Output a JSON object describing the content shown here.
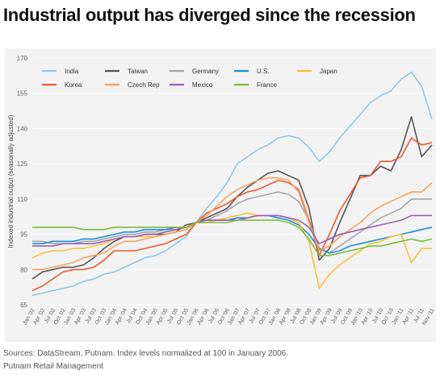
{
  "header": {
    "title": "Industrial output has diverged since the recession"
  },
  "footer": {
    "source": "Sources: DataStream, Putnam. Index levels normalized at 100 in January 2006.",
    "credit": "Putnam Retail Management"
  },
  "chart_data": {
    "type": "line",
    "ylabel": "Indexed industrial output (seasonally adjusted)",
    "xlabel": "",
    "ylim": [
      65,
      170
    ],
    "yticks": [
      65,
      80,
      95,
      110,
      125,
      140,
      155,
      170
    ],
    "grid": true,
    "legend_position": "top",
    "x": [
      "Jan '02",
      "Apr '02",
      "Jul '02",
      "Oct '02",
      "Jan '03",
      "Apr '03",
      "Jul '03",
      "Oct '03",
      "Jan '04",
      "Apr '04",
      "Jul '04",
      "Oct '04",
      "Jan '05",
      "Apr '05",
      "Jul '05",
      "Oct '05",
      "Jan '06",
      "Apr '06",
      "Jul '06",
      "Oct '06",
      "Jan '07",
      "Apr '07",
      "Jul '07",
      "Oct '07",
      "Jan '08",
      "Apr '08",
      "Jul '08",
      "Oct '08",
      "Jan '09",
      "Apr '09",
      "Jul '09",
      "Oct '09",
      "Jan '10",
      "Apr '10",
      "Jul '10",
      "Oct '10",
      "Jan '11",
      "Apr '11",
      "Jul '11",
      "Nov '11"
    ],
    "series": [
      {
        "name": "India",
        "color": "#8ec8e8",
        "values": [
          69,
          70,
          71,
          72,
          73,
          75,
          76,
          78,
          79,
          81,
          83,
          85,
          86,
          88,
          91,
          94,
          100,
          106,
          111,
          117,
          125,
          128,
          131,
          133,
          136,
          137,
          136,
          132,
          126,
          130,
          136,
          141,
          146,
          151,
          154,
          156,
          161,
          164,
          158,
          144
        ]
      },
      {
        "name": "Taiwan",
        "color": "#555555",
        "values": [
          76,
          79,
          80,
          81,
          81,
          82,
          85,
          89,
          92,
          94,
          94,
          95,
          95,
          95,
          96,
          99,
          100,
          102,
          104,
          106,
          111,
          115,
          118,
          121,
          122,
          120,
          118,
          106,
          84,
          89,
          100,
          110,
          120,
          120,
          124,
          122,
          131,
          145,
          128,
          133
        ]
      },
      {
        "name": "Germany",
        "color": "#a6a6a6",
        "values": [
          92,
          92,
          91,
          91,
          91,
          92,
          92,
          93,
          94,
          95,
          95,
          96,
          96,
          97,
          97,
          98,
          100,
          101,
          103,
          105,
          108,
          110,
          111,
          112,
          113,
          112,
          109,
          101,
          89,
          87,
          90,
          93,
          96,
          99,
          102,
          104,
          106,
          110,
          110,
          110
        ]
      },
      {
        "name": "U.S.",
        "color": "#1b8fd8",
        "values": [
          91,
          91,
          92,
          92,
          92,
          93,
          93,
          94,
          95,
          96,
          96,
          97,
          97,
          97,
          98,
          98,
          100,
          101,
          101,
          101,
          102,
          102,
          103,
          103,
          102,
          101,
          99,
          95,
          89,
          87,
          88,
          90,
          91,
          92,
          93,
          94,
          95,
          96,
          97,
          98
        ]
      },
      {
        "name": "Japan",
        "color": "#f5c432",
        "values": [
          85,
          87,
          88,
          88,
          89,
          89,
          90,
          91,
          93,
          94,
          94,
          94,
          94,
          95,
          96,
          97,
          100,
          100,
          101,
          102,
          103,
          104,
          103,
          103,
          103,
          102,
          100,
          92,
          72,
          78,
          82,
          85,
          88,
          91,
          92,
          94,
          95,
          83,
          89,
          89
        ]
      },
      {
        "name": "Korea",
        "color": "#ea5a2d",
        "values": [
          71,
          73,
          76,
          79,
          80,
          80,
          81,
          84,
          88,
          88,
          88,
          89,
          90,
          91,
          93,
          95,
          100,
          104,
          106,
          108,
          111,
          113,
          114,
          116,
          118,
          117,
          114,
          101,
          86,
          95,
          105,
          112,
          119,
          120,
          126,
          126,
          128,
          136,
          133,
          134
        ]
      },
      {
        "name": "Czech Rep",
        "color": "#f5a25c",
        "values": [
          80,
          80,
          81,
          82,
          83,
          85,
          86,
          87,
          90,
          92,
          92,
          93,
          94,
          95,
          96,
          97,
          100,
          103,
          107,
          111,
          114,
          116,
          118,
          119,
          119,
          118,
          113,
          100,
          88,
          90,
          94,
          97,
          100,
          104,
          107,
          109,
          111,
          113,
          113,
          117
        ]
      },
      {
        "name": "Mexico",
        "color": "#9b5fb5",
        "values": [
          90,
          90,
          90,
          91,
          91,
          91,
          91,
          92,
          93,
          94,
          94,
          95,
          95,
          96,
          97,
          98,
          100,
          101,
          101,
          101,
          101,
          102,
          103,
          103,
          103,
          102,
          101,
          98,
          91,
          93,
          95,
          96,
          97,
          98,
          99,
          100,
          101,
          103,
          103,
          103
        ]
      },
      {
        "name": "France",
        "color": "#7dbc3d",
        "values": [
          98,
          98,
          98,
          98,
          98,
          97,
          97,
          97,
          98,
          98,
          98,
          98,
          98,
          98,
          98,
          98,
          100,
          100,
          100,
          100,
          101,
          101,
          101,
          101,
          101,
          100,
          98,
          93,
          86,
          86,
          87,
          88,
          89,
          90,
          90,
          91,
          92,
          93,
          92,
          93
        ]
      }
    ]
  }
}
